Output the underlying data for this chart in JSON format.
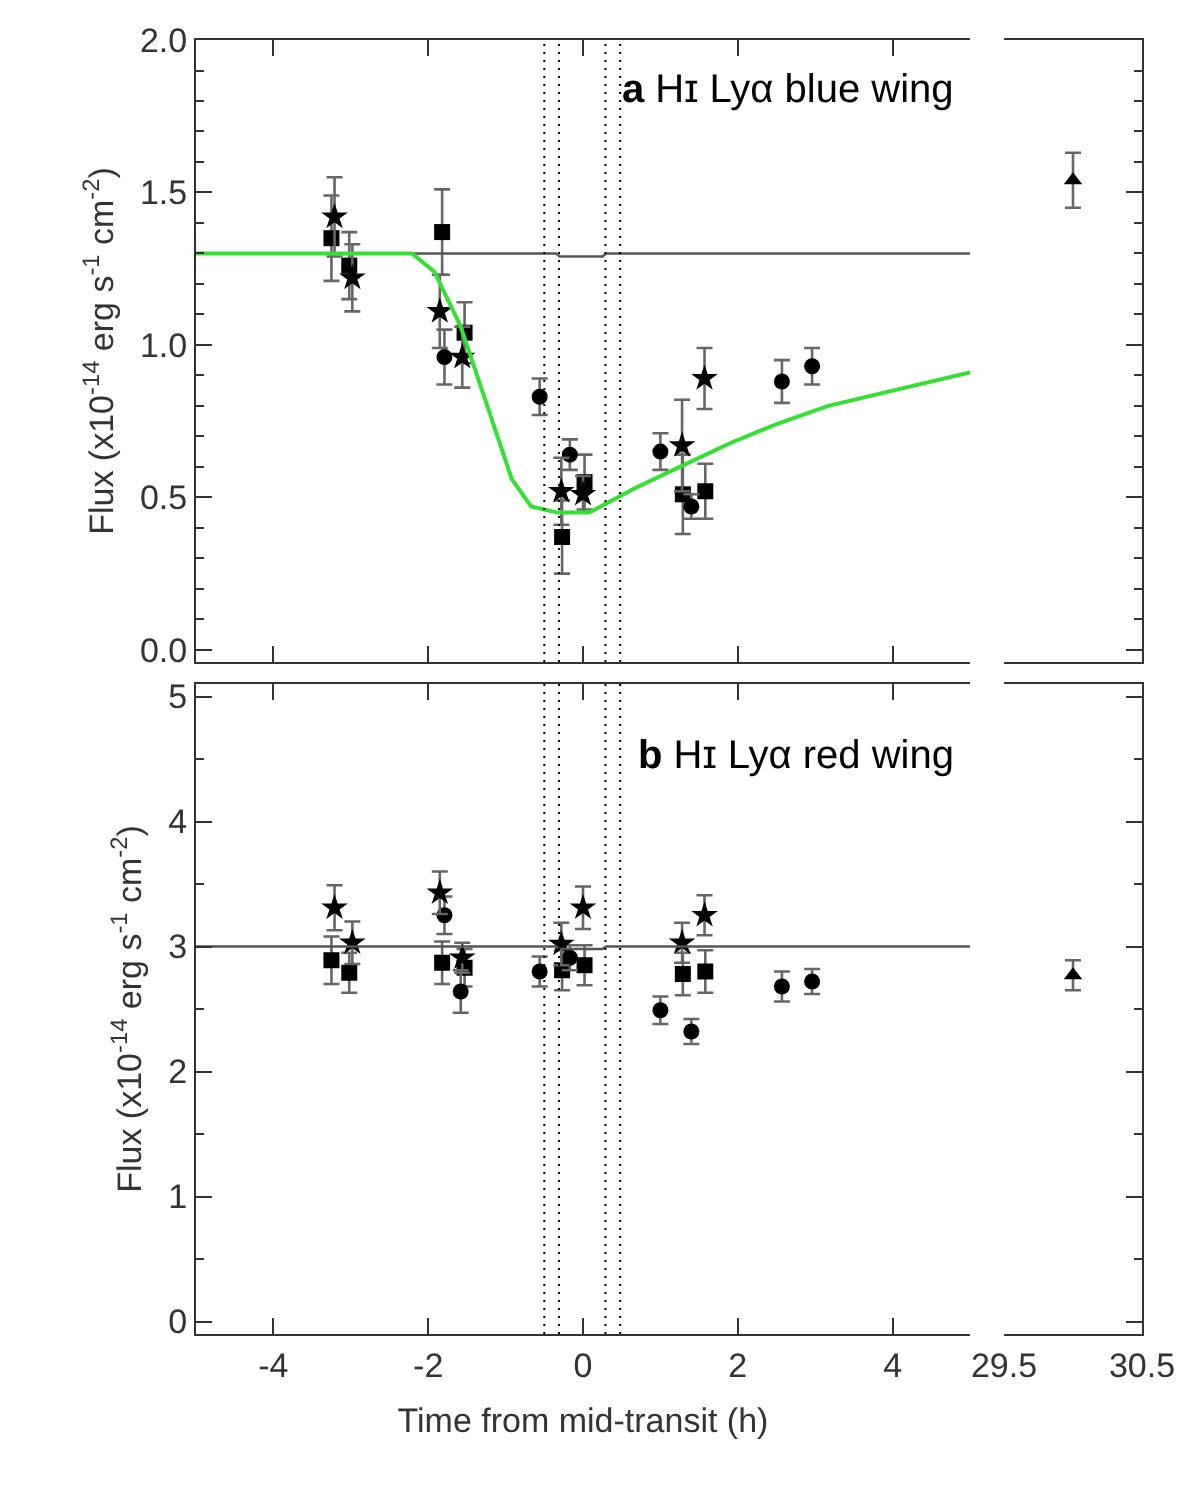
{
  "chart_data": [
    {
      "type": "scatter",
      "title": "Hɪ Lyα blue wing",
      "annotations": [
        "a"
      ],
      "ylabel": "Flux (x10$^{-14}$ erg s$^{-1}$ cm$^{-2}$)",
      "xlim": [
        -5,
        5
      ],
      "xticks": [
        -4,
        -2,
        0,
        2,
        4
      ],
      "ylim": [
        -0.04,
        2.0
      ],
      "yticks": [
        {
          "value": 0,
          "label": "0.0"
        },
        {
          "value": 0.5,
          "label": "0.5"
        },
        {
          "value": 1,
          "label": "1.0"
        },
        {
          "value": 1.5,
          "label": "1.5"
        },
        {
          "value": 2,
          "label": "2.0"
        }
      ],
      "tick_labels": "y",
      "grid": false,
      "ref_lines": [
        {
          "axis": "x",
          "value": -0.5,
          "line_style": "dotted",
          "color": "#000000"
        },
        {
          "axis": "x",
          "value": -0.31,
          "line_style": "dotted",
          "color": "#000000"
        },
        {
          "axis": "x",
          "value": 0.29,
          "line_style": "dotted",
          "color": "#000000"
        },
        {
          "axis": "x",
          "value": 0.48,
          "line_style": "dotted",
          "color": "#000000"
        }
      ],
      "series": [
        {
          "color": "#000000",
          "marker": "square",
          "x": [
            -3.25,
            -3.02,
            -1.82,
            -1.53,
            -0.27,
            0.02,
            1.29,
            1.58
          ],
          "values": [
            1.35,
            1.26,
            1.37,
            1.04,
            0.37,
            0.55,
            0.51,
            0.52
          ],
          "errors": [
            0.14,
            0.11,
            0.14,
            0.1,
            0.12,
            0.09,
            0.13,
            0.09
          ]
        },
        {
          "color": "#000000",
          "marker": "circle",
          "x": [
            -1.79,
            -0.56,
            -0.17,
            1.0,
            1.4,
            2.57,
            2.96
          ],
          "values": [
            0.96,
            0.83,
            0.64,
            0.65,
            0.47,
            0.88,
            0.93
          ],
          "errors": [
            0.09,
            0.06,
            0.05,
            0.06,
            0.04,
            0.07,
            0.06
          ]
        },
        {
          "color": "#000000",
          "marker": "star",
          "x": [
            -3.21,
            -2.98,
            -1.85,
            -1.56,
            -0.28,
            0.0,
            1.28,
            1.57
          ],
          "values": [
            1.42,
            1.22,
            1.11,
            0.96,
            0.52,
            0.51,
            0.67,
            0.89
          ],
          "errors": [
            0.13,
            0.11,
            0.12,
            0.1,
            0.11,
            0.06,
            0.15,
            0.1
          ]
        },
        {
          "type": "line",
          "color": "#555555",
          "marker": "none",
          "line_style": "solid",
          "x": [
            -5,
            -0.35,
            -0.3,
            0.25,
            0.3,
            5
          ],
          "values": [
            1.3,
            1.3,
            1.29,
            1.29,
            1.3,
            1.3
          ]
        },
        {
          "type": "line",
          "color": "#33e033",
          "marker": "none",
          "line_style": "solid",
          "x": [
            -5,
            -2.21,
            -1.92,
            -1.58,
            -1.25,
            -0.92,
            -0.67,
            -0.33,
            0.08,
            0.67,
            1.25,
            1.92,
            2.5,
            3.17,
            4.0,
            5.0
          ],
          "values": [
            1.3,
            1.3,
            1.24,
            1.06,
            0.81,
            0.56,
            0.47,
            0.45,
            0.45,
            0.53,
            0.6,
            0.68,
            0.74,
            0.8,
            0.85,
            0.91
          ]
        }
      ]
    },
    {
      "type": "scatter",
      "xlim": [
        29.5,
        30.5
      ],
      "xticks": [
        29.5,
        30.5
      ],
      "ylim": [
        -0.04,
        2.0
      ],
      "yticks": [
        0,
        0.5,
        1,
        1.5,
        2
      ],
      "tick_labels": false,
      "grid": false,
      "series": [
        {
          "color": "#000000",
          "marker": "triangle",
          "x": [
            30.0
          ],
          "values": [
            1.54
          ],
          "errors": [
            0.09
          ]
        }
      ]
    },
    {
      "type": "scatter",
      "title": "Hɪ Lyα red wing",
      "annotations": [
        "b"
      ],
      "ylabel": "Flux (x10$^{-14}$ erg s$^{-1}$ cm$^{-2}$)",
      "xlabel": "Time from mid-transit (h)",
      "xlim": [
        -5,
        5
      ],
      "xticks": [
        -4,
        -2,
        0,
        2,
        4
      ],
      "ylim": [
        -0.1,
        5.1
      ],
      "yticks": [
        0,
        1,
        2,
        3,
        4,
        5
      ],
      "grid": false,
      "ref_lines": [
        {
          "axis": "x",
          "value": -0.5,
          "line_style": "dotted",
          "color": "#000000"
        },
        {
          "axis": "x",
          "value": -0.31,
          "line_style": "dotted",
          "color": "#000000"
        },
        {
          "axis": "x",
          "value": 0.29,
          "line_style": "dotted",
          "color": "#000000"
        },
        {
          "axis": "x",
          "value": 0.48,
          "line_style": "dotted",
          "color": "#000000"
        }
      ],
      "series": [
        {
          "color": "#000000",
          "marker": "square",
          "x": [
            -3.25,
            -3.02,
            -1.82,
            -1.53,
            -0.27,
            0.02,
            1.29,
            1.58
          ],
          "values": [
            2.89,
            2.79,
            2.87,
            2.83,
            2.81,
            2.85,
            2.78,
            2.8
          ],
          "errors": [
            0.19,
            0.16,
            0.17,
            0.15,
            0.16,
            0.16,
            0.17,
            0.17
          ]
        },
        {
          "color": "#000000",
          "marker": "circle",
          "x": [
            -1.79,
            -1.58,
            -0.56,
            -0.17,
            1.0,
            1.4,
            2.57,
            2.96
          ],
          "values": [
            3.25,
            2.64,
            2.8,
            2.91,
            2.49,
            2.32,
            2.68,
            2.72
          ],
          "errors": [
            0.15,
            0.17,
            0.12,
            0.1,
            0.11,
            0.1,
            0.12,
            0.1
          ]
        },
        {
          "color": "#000000",
          "marker": "star",
          "x": [
            -3.21,
            -2.98,
            -1.85,
            -1.56,
            -0.28,
            0.0,
            1.28,
            1.57
          ],
          "values": [
            3.31,
            3.03,
            3.43,
            2.91,
            3.02,
            3.31,
            3.03,
            3.25
          ],
          "errors": [
            0.18,
            0.17,
            0.17,
            0.12,
            0.17,
            0.17,
            0.16,
            0.16
          ]
        },
        {
          "type": "line",
          "color": "#555555",
          "marker": "none",
          "line_style": "solid",
          "x": [
            -5,
            -0.35,
            -0.3,
            0.25,
            0.3,
            5
          ],
          "values": [
            3,
            3,
            2.98,
            2.98,
            3,
            3
          ]
        }
      ]
    },
    {
      "type": "scatter",
      "xlim": [
        29.5,
        30.5
      ],
      "xticks": [
        29.5,
        30.5
      ],
      "ylim": [
        -0.1,
        5.1
      ],
      "yticks": [
        0,
        1,
        2,
        3,
        4,
        5
      ],
      "tick_labels": "x",
      "grid": false,
      "series": [
        {
          "color": "#000000",
          "marker": "triangle",
          "x": [
            30.0
          ],
          "values": [
            2.77
          ],
          "errors": [
            0.12
          ]
        }
      ]
    }
  ]
}
